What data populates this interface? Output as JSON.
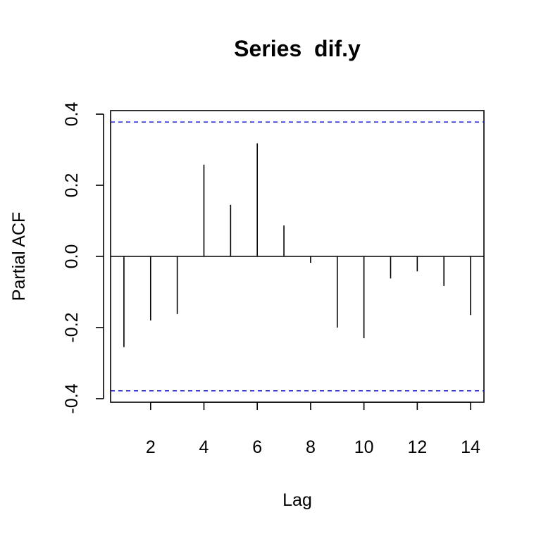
{
  "chart_data": {
    "type": "bar",
    "title": "Series  dif.y",
    "xlabel": "Lag",
    "ylabel": "Partial ACF",
    "x": [
      1,
      2,
      3,
      4,
      5,
      6,
      7,
      8,
      9,
      10,
      11,
      12,
      13,
      14
    ],
    "values": [
      -0.255,
      -0.18,
      -0.162,
      0.258,
      0.145,
      0.318,
      0.087,
      -0.018,
      -0.2,
      -0.23,
      -0.062,
      -0.042,
      -0.083,
      -0.165
    ],
    "confidence_bound": 0.378,
    "xlim": [
      0.5,
      14.5
    ],
    "ylim": [
      -0.41,
      0.41
    ],
    "x_ticks": [
      2,
      4,
      6,
      8,
      10,
      12,
      14
    ],
    "x_tick_labels": [
      "2",
      "4",
      "6",
      "8",
      "10",
      "12",
      "14"
    ],
    "y_ticks": [
      -0.4,
      -0.2,
      0.0,
      0.2,
      0.4
    ],
    "y_tick_labels": [
      "-0.4",
      "-0.2",
      "0.0",
      "0.2",
      "0.4"
    ],
    "colors": {
      "bars": "#000000",
      "confidence_lines": "#0000CD",
      "zero_line": "#000000"
    },
    "grid": false,
    "legend": false
  }
}
